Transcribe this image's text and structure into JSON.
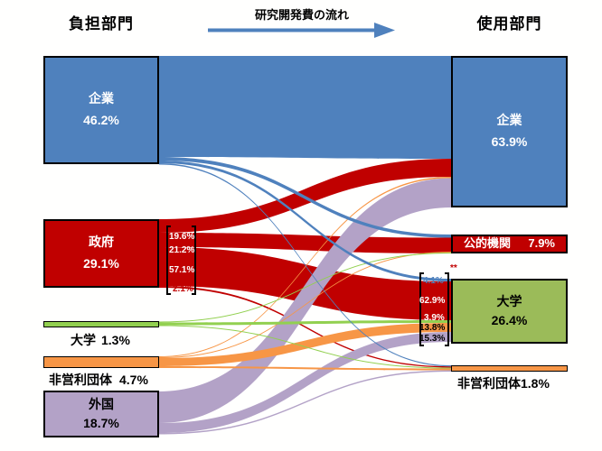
{
  "chart_data": {
    "type": "sankey",
    "title": "研究開発費の流れ",
    "left_column_label": "負担部門",
    "right_column_label": "使用部門",
    "sources": [
      {
        "name": "企業",
        "pct": "46.2%",
        "color": "#4f81bd"
      },
      {
        "name": "政府",
        "pct": "29.1%",
        "color": "#c00000"
      },
      {
        "name": "大学",
        "pct": "1.3%",
        "color": "#92d050"
      },
      {
        "name": "非営利団体",
        "pct": "4.7%",
        "color": "#f79646"
      },
      {
        "name": "外国",
        "pct": "18.7%",
        "color": "#b3a2c7"
      }
    ],
    "targets": [
      {
        "name": "企業",
        "pct": "63.9%",
        "color": "#4f81bd"
      },
      {
        "name": "公的機関",
        "pct": "7.9%",
        "color": "#c00000"
      },
      {
        "name": "大学",
        "pct": "26.4%",
        "color": "#9bbb59"
      },
      {
        "name": "非営利団体",
        "pct": "1.8%",
        "color": "#f79646"
      }
    ],
    "gov_outflow_note": "*",
    "gov_outflow": [
      {
        "to": "企業",
        "pct": "19.6%"
      },
      {
        "to": "公的機関",
        "pct": "21.2%"
      },
      {
        "to": "大学",
        "pct": "57.1%"
      },
      {
        "to": "非営利団体",
        "pct": "2.1%"
      }
    ],
    "univ_inflow_note": "**",
    "univ_inflow": [
      {
        "from": "企業",
        "pct": "4.1%"
      },
      {
        "from": "政府",
        "pct": "62.9%"
      },
      {
        "from": "大学",
        "pct": "3.9%"
      },
      {
        "from": "非営利団体",
        "pct": "13.8%"
      },
      {
        "from": "外国",
        "pct": "15.3%"
      }
    ],
    "links": [
      {
        "id": "gov-to-companies",
        "from": "政府",
        "to": "企業",
        "color": "#c00000"
      },
      {
        "id": "gov-to-public",
        "from": "政府",
        "to": "公的機関",
        "color": "#c00000"
      },
      {
        "id": "gov-to-universities",
        "from": "政府",
        "to": "大学",
        "color": "#c00000"
      },
      {
        "id": "gov-to-nonprofits",
        "from": "政府",
        "to": "非営利団体",
        "color": "#c00000"
      },
      {
        "id": "foreign-to-companies",
        "from": "外国",
        "to": "企業",
        "color": "#b3a2c7"
      },
      {
        "id": "foreign-to-universities",
        "from": "外国",
        "to": "大学",
        "color": "#b3a2c7"
      },
      {
        "id": "foreign-to-nonprofits",
        "from": "外国",
        "to": "非営利団体",
        "color": "#b3a2c7"
      },
      {
        "id": "nonprofits-to-companies",
        "from": "非営利団体",
        "to": "企業",
        "color": "#f79646"
      },
      {
        "id": "nonprofits-to-public",
        "from": "非営利団体",
        "to": "公的機関",
        "color": "#f79646"
      },
      {
        "id": "nonprofits-to-universities",
        "from": "非営利団体",
        "to": "大学",
        "color": "#f79646"
      },
      {
        "id": "nonprofits-to-nonprofits",
        "from": "非営利団体",
        "to": "非営利団体",
        "color": "#f79646"
      },
      {
        "id": "universities-to-public",
        "from": "大学",
        "to": "公的機関",
        "color": "#92d050"
      },
      {
        "id": "universities-to-universities",
        "from": "大学",
        "to": "大学",
        "color": "#92d050"
      },
      {
        "id": "universities-to-nonprofits",
        "from": "大学",
        "to": "非営利団体",
        "color": "#92d050"
      },
      {
        "id": "companies-to-companies",
        "from": "企業",
        "to": "企業",
        "color": "#4f81bd"
      },
      {
        "id": "companies-to-public",
        "from": "企業",
        "to": "公的機関",
        "color": "#4f81bd"
      },
      {
        "id": "companies-to-universities",
        "from": "企業",
        "to": "大学",
        "color": "#4f81bd"
      },
      {
        "id": "companies-to-nonprofits",
        "from": "企業",
        "to": "非営利団体",
        "color": "#4f81bd"
      }
    ],
    "arrow_color": "#4f81bd"
  }
}
